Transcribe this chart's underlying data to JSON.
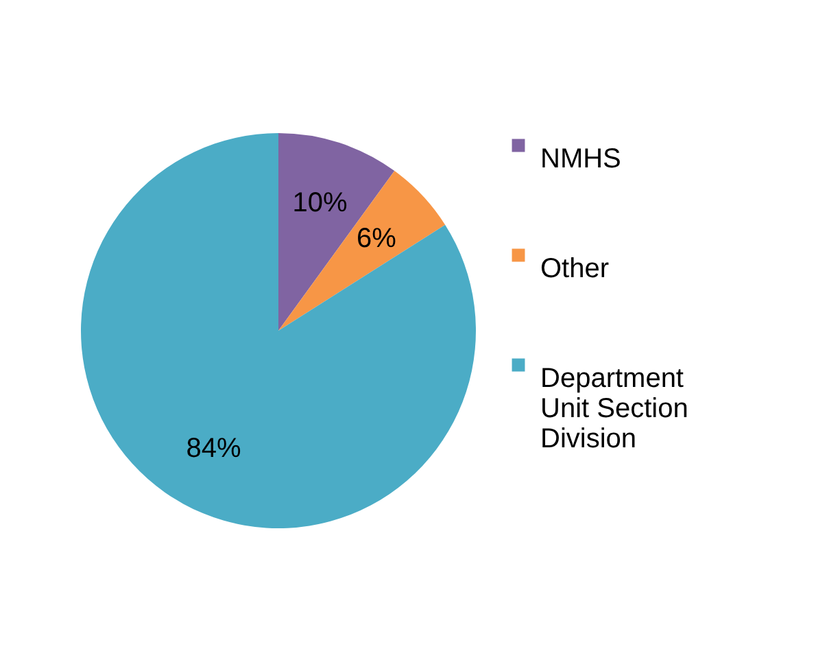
{
  "chart_data": {
    "type": "pie",
    "categories": [
      "NMHS",
      "Other",
      "Department Unit Section Division"
    ],
    "values": [
      10,
      6,
      84
    ],
    "colors": [
      "#8064a2",
      "#f79646",
      "#4bacc6"
    ],
    "value_labels": [
      "10%",
      "6%",
      "84%"
    ],
    "legend": "right"
  }
}
